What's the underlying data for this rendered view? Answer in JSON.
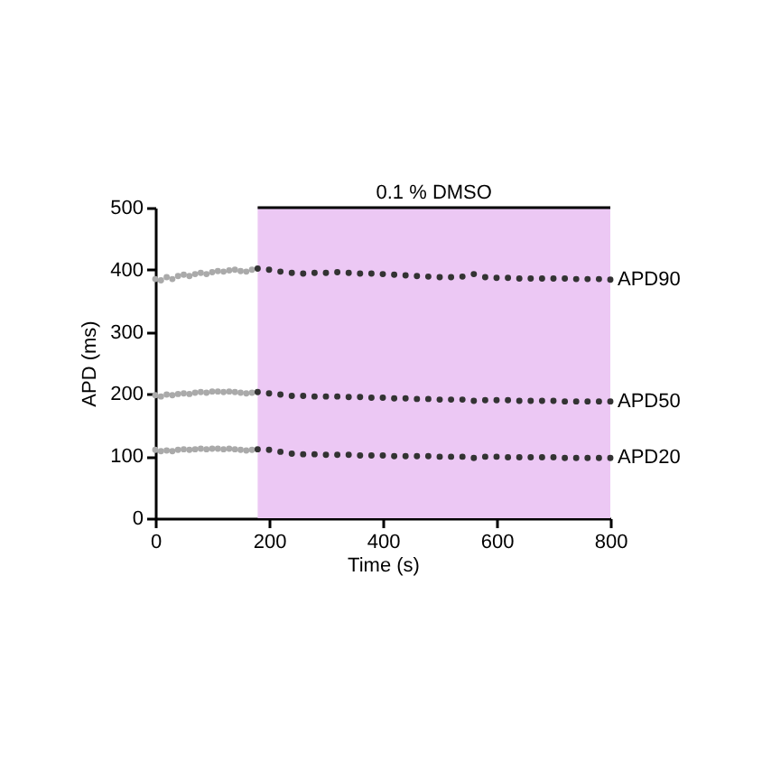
{
  "chart_data": {
    "type": "scatter",
    "xlabel": "Time (s)",
    "ylabel": "APD (ms)",
    "xlim": [
      0,
      800
    ],
    "xticks": [
      0,
      200,
      400,
      600,
      800
    ],
    "ylim": [
      0,
      500
    ],
    "yticks": [
      0,
      100,
      200,
      300,
      400,
      500
    ],
    "grid": false,
    "marker": "circle",
    "bands": [
      {
        "axis": "x",
        "from": 180,
        "to": 800,
        "label": "0.1 % DMSO",
        "color": "#ecc8f4"
      }
    ],
    "series": [
      {
        "color": "#aaaaaa",
        "x": [
          0,
          10,
          20,
          30,
          40,
          50,
          60,
          70,
          80,
          90,
          100,
          110,
          120,
          130,
          140,
          150,
          160,
          170
        ],
        "values": [
          385,
          383,
          388,
          385,
          390,
          392,
          390,
          393,
          395,
          393,
          396,
          398,
          397,
          399,
          400,
          398,
          397,
          400
        ]
      },
      {
        "name": "APD90",
        "color": "#333333",
        "x": [
          180,
          200,
          220,
          240,
          260,
          280,
          300,
          320,
          340,
          360,
          380,
          400,
          420,
          440,
          460,
          480,
          500,
          520,
          540,
          560,
          580,
          600,
          620,
          640,
          660,
          680,
          700,
          720,
          740,
          760,
          780,
          800
        ],
        "values": [
          402,
          400,
          397,
          395,
          394,
          395,
          395,
          396,
          395,
          394,
          394,
          393,
          392,
          391,
          390,
          389,
          388,
          388,
          389,
          393,
          388,
          387,
          387,
          386,
          386,
          386,
          386,
          386,
          385,
          385,
          385,
          384
        ]
      },
      {
        "color": "#aaaaaa",
        "x": [
          0,
          10,
          20,
          30,
          40,
          50,
          60,
          70,
          80,
          90,
          100,
          110,
          120,
          130,
          140,
          150,
          160,
          170
        ],
        "values": [
          198,
          196,
          199,
          198,
          200,
          201,
          200,
          202,
          203,
          202,
          204,
          204,
          203,
          204,
          203,
          202,
          201,
          202
        ]
      },
      {
        "name": "APD50",
        "color": "#333333",
        "x": [
          180,
          200,
          220,
          240,
          260,
          280,
          300,
          320,
          340,
          360,
          380,
          400,
          420,
          440,
          460,
          480,
          500,
          520,
          540,
          560,
          580,
          600,
          620,
          640,
          660,
          680,
          700,
          720,
          740,
          760,
          780,
          800
        ],
        "values": [
          203,
          201,
          199,
          197,
          197,
          196,
          196,
          196,
          195,
          195,
          194,
          194,
          193,
          193,
          192,
          192,
          191,
          191,
          191,
          189,
          190,
          190,
          190,
          189,
          189,
          189,
          189,
          188,
          188,
          188,
          188,
          188
        ]
      },
      {
        "color": "#aaaaaa",
        "x": [
          0,
          10,
          20,
          30,
          40,
          50,
          60,
          70,
          80,
          90,
          100,
          110,
          120,
          130,
          140,
          150,
          160,
          170
        ],
        "values": [
          110,
          108,
          109,
          108,
          110,
          111,
          110,
          111,
          112,
          111,
          112,
          112,
          111,
          112,
          111,
          110,
          109,
          110
        ]
      },
      {
        "name": "APD20",
        "color": "#333333",
        "x": [
          180,
          200,
          220,
          240,
          260,
          280,
          300,
          320,
          340,
          360,
          380,
          400,
          420,
          440,
          460,
          480,
          500,
          520,
          540,
          560,
          580,
          600,
          620,
          640,
          660,
          680,
          700,
          720,
          740,
          760,
          780,
          800
        ],
        "values": [
          111,
          110,
          107,
          104,
          103,
          103,
          102,
          102,
          102,
          101,
          101,
          101,
          100,
          100,
          100,
          100,
          99,
          99,
          99,
          97,
          99,
          99,
          98,
          98,
          98,
          98,
          98,
          97,
          97,
          97,
          97,
          97
        ]
      }
    ]
  }
}
